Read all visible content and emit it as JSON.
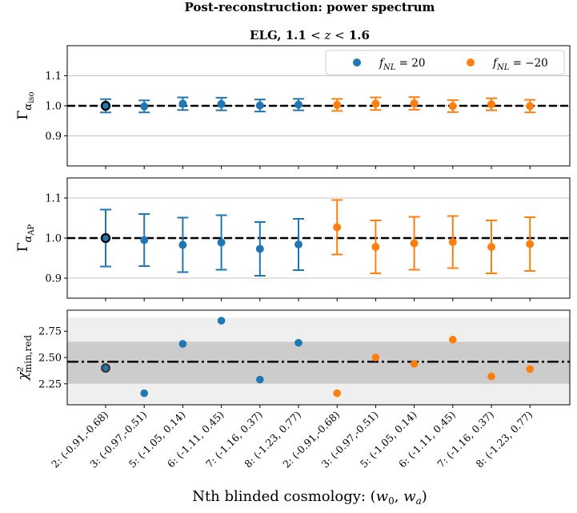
{
  "chart_data": {
    "type": "scatter",
    "title": "Post-reconstruction: power spectrum",
    "subtitle": "ELG, 1.1 < z < 1.6",
    "xlabel": "Nth blinded cosmology: (w0, wa)",
    "xlabel_parts": {
      "lead": "Nth blinded cosmology: (",
      "w0": "w",
      "w0_sub": "0",
      "sep": ", ",
      "wa": "w",
      "wa_sub": "a",
      "close": ")"
    },
    "categories": [
      "2: (-0.91,-0.68)",
      "3: (-0.97,-0.51)",
      "5: (-1.05, 0.14)",
      "6: (-1.11, 0.45)",
      "7: (-1.16, 0.37)",
      "8: (-1.23, 0.77)",
      "2: (-0.91,-0.68)",
      "3: (-0.97,-0.51)",
      "5: (-1.05, 0.14)",
      "6: (-1.11, 0.45)",
      "7: (-1.16, 0.37)",
      "8: (-1.23, 0.77)"
    ],
    "legend_position": "top-right",
    "series": [
      {
        "name": "fNL = 20",
        "label_parts": {
          "f": "f",
          "sub": "NL",
          "rest": " = 20"
        },
        "color": "#1f77b4",
        "indices": [
          0,
          1,
          2,
          3,
          4,
          5
        ]
      },
      {
        "name": "fNL = -20",
        "label_parts": {
          "f": "f",
          "sub": "NL",
          "rest": " = −20"
        },
        "color": "#ff7f0e",
        "indices": [
          6,
          7,
          8,
          9,
          10,
          11
        ]
      }
    ],
    "panels": [
      {
        "id": "iso",
        "ylabel": "Γ",
        "ylabel_sub": "α",
        "ylabel_subsub": "iso",
        "ylim": [
          0.8,
          1.2
        ],
        "yticks": [
          0.9,
          1.0,
          1.1
        ],
        "ytick_labels": [
          "0.9",
          "1.0",
          "1.1"
        ],
        "reference_line": 1.0,
        "values": [
          1.0,
          0.998,
          1.007,
          1.006,
          1.001,
          1.004,
          1.003,
          1.007,
          1.008,
          0.999,
          1.005,
          0.999
        ],
        "errors": [
          0.022,
          0.02,
          0.021,
          0.021,
          0.02,
          0.019,
          0.02,
          0.021,
          0.021,
          0.02,
          0.02,
          0.021
        ]
      },
      {
        "id": "ap",
        "ylabel": "Γ",
        "ylabel_sub": "α",
        "ylabel_subsub": "AP",
        "ylim": [
          0.85,
          1.15
        ],
        "yticks": [
          0.9,
          1.0,
          1.1
        ],
        "ytick_labels": [
          "0.9",
          "1.0",
          "1.1"
        ],
        "reference_line": 1.0,
        "values": [
          1.0,
          0.995,
          0.983,
          0.989,
          0.973,
          0.984,
          1.027,
          0.978,
          0.987,
          0.99,
          0.978,
          0.985
        ],
        "errors": [
          0.071,
          0.065,
          0.068,
          0.068,
          0.067,
          0.064,
          0.068,
          0.066,
          0.066,
          0.065,
          0.066,
          0.067
        ]
      },
      {
        "id": "chi2",
        "ylabel": "χ²",
        "ylabel_sub": "min,red",
        "ylim": [
          2.05,
          2.95
        ],
        "yticks": [
          2.25,
          2.5,
          2.75
        ],
        "ytick_labels": [
          "2.25",
          "2.50",
          "2.75"
        ],
        "reference_line": 2.46,
        "band_inner": [
          2.25,
          2.65
        ],
        "band_outer": [
          2.05,
          2.88
        ],
        "values": [
          2.4,
          2.16,
          2.63,
          2.85,
          2.29,
          2.64,
          2.16,
          2.5,
          2.44,
          2.67,
          2.32,
          2.39
        ]
      }
    ]
  }
}
